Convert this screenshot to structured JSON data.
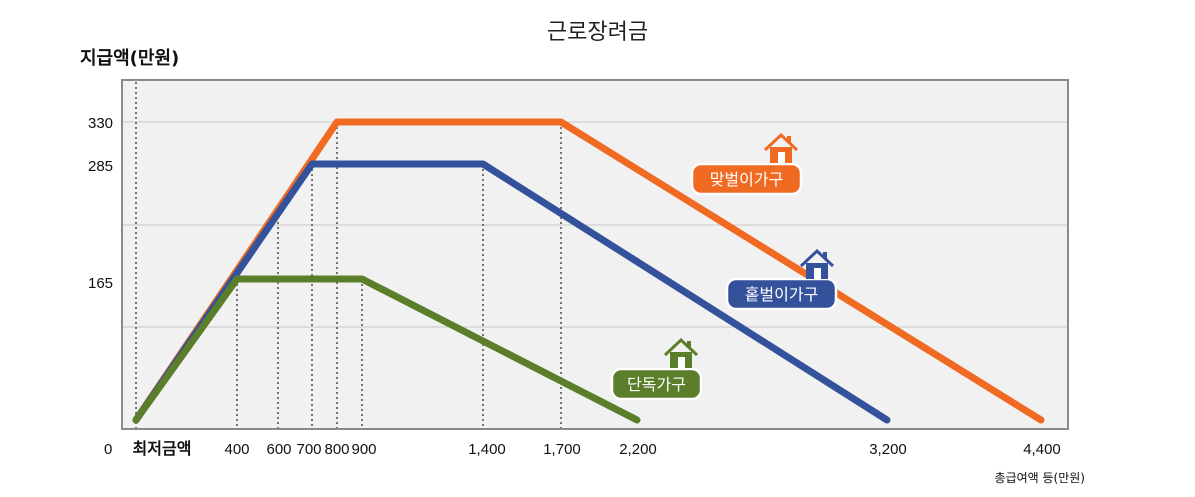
{
  "chart_data": {
    "type": "line",
    "title": "근로장려금",
    "ylabel": "지급액(만원)",
    "xlabel": "총급여액 등(만원)",
    "y_ticks": [
      "330",
      "285",
      "165",
      "0"
    ],
    "x_tick_labels": [
      "최저금액",
      "400",
      "600",
      "700",
      "800",
      "900",
      "1,400",
      "1,700",
      "2,200",
      "3,200",
      "4,400"
    ],
    "series": [
      {
        "name": "맞벌이가구",
        "color": "#f06a22",
        "points": [
          [
            "최저금액",
            0
          ],
          [
            800,
            330
          ],
          [
            1700,
            330
          ],
          [
            4400,
            0
          ]
        ]
      },
      {
        "name": "홑벌이가구",
        "color": "#34519c",
        "points": [
          [
            "최저금액",
            0
          ],
          [
            700,
            285
          ],
          [
            1400,
            285
          ],
          [
            3200,
            0
          ]
        ]
      },
      {
        "name": "단독가구",
        "color": "#5a7e2a",
        "points": [
          [
            "최저금액",
            0
          ],
          [
            400,
            165
          ],
          [
            900,
            165
          ],
          [
            2200,
            0
          ]
        ]
      }
    ]
  }
}
